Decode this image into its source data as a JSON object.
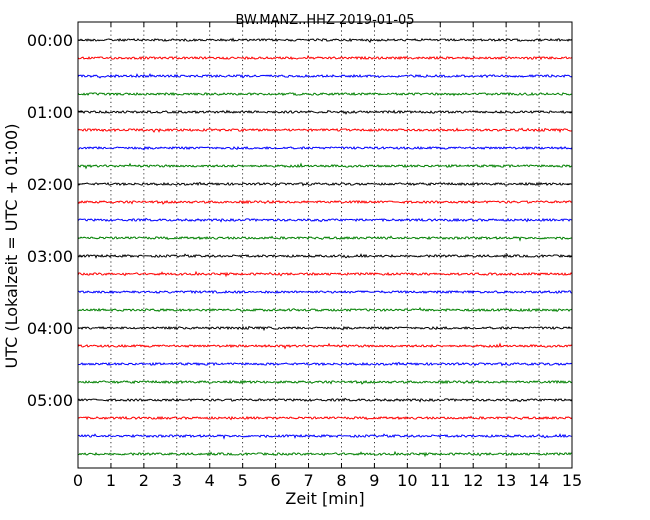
{
  "chart_data": {
    "type": "line",
    "title": "BW.MANZ..HHZ 2019-01-05",
    "xlabel": "Zeit  [min]",
    "ylabel": "UTC (Lokalzeit = UTC + 01:00)",
    "xlim": [
      0,
      15
    ],
    "xticks": [
      0,
      1,
      2,
      3,
      4,
      5,
      6,
      7,
      8,
      9,
      10,
      11,
      12,
      13,
      14,
      15
    ],
    "yticks": [
      {
        "label": "00:00",
        "row": 0
      },
      {
        "label": "01:00",
        "row": 4
      },
      {
        "label": "02:00",
        "row": 8
      },
      {
        "label": "03:00",
        "row": 12
      },
      {
        "label": "04:00",
        "row": 16
      },
      {
        "label": "05:00",
        "row": 20
      }
    ],
    "row_minutes": 15,
    "row_count": 24,
    "grid": {
      "vertical": true,
      "dotted": true
    },
    "color_cycle": [
      "#000000",
      "#ff0000",
      "#0000ff",
      "#008000"
    ]
  }
}
